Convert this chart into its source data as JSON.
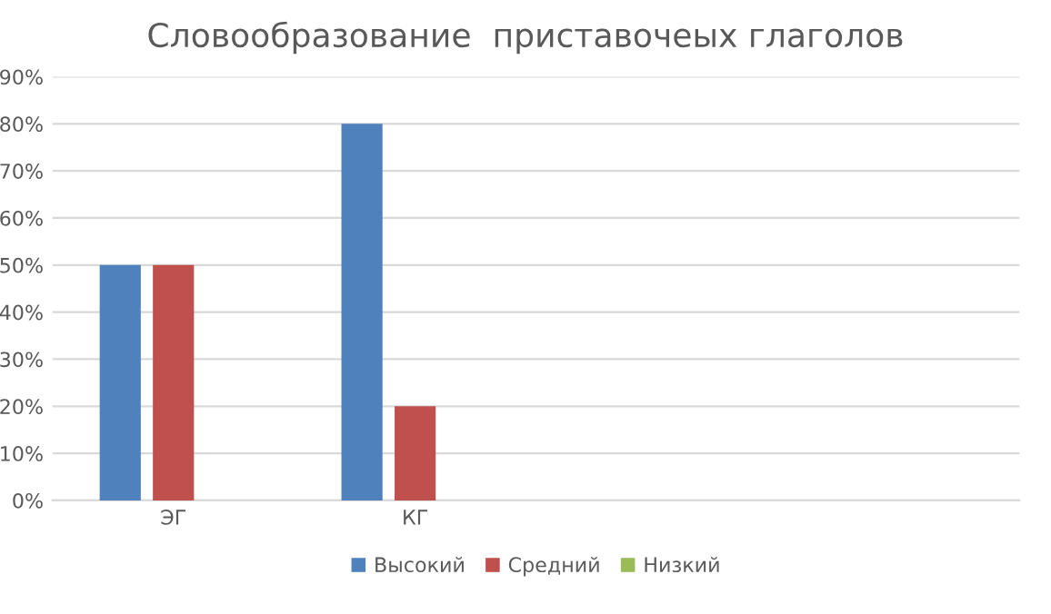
{
  "chart_data": {
    "type": "bar",
    "title": "Словообразование  приставочеых глаголов",
    "categories": [
      "ЭГ",
      "КГ",
      null,
      null
    ],
    "series": [
      {
        "name": "Высокий",
        "color": "#4f81bd",
        "values": [
          50,
          80,
          null,
          null
        ]
      },
      {
        "name": "Средний",
        "color": "#c0504d",
        "values": [
          50,
          20,
          null,
          null
        ]
      },
      {
        "name": "Низкий",
        "color": "#9bbb59",
        "values": [
          0,
          0,
          null,
          null
        ]
      }
    ],
    "ylim": [
      0,
      90
    ],
    "yticks": [
      {
        "value": 0,
        "label": "0%"
      },
      {
        "value": 10,
        "label": "10%"
      },
      {
        "value": 20,
        "label": "20%"
      },
      {
        "value": 30,
        "label": "30%"
      },
      {
        "value": 40,
        "label": "40%"
      },
      {
        "value": 50,
        "label": "50%"
      },
      {
        "value": 60,
        "label": "60%"
      },
      {
        "value": 70,
        "label": "70%"
      },
      {
        "value": 80,
        "label": "80%"
      },
      {
        "value": 90,
        "label": "90%"
      }
    ],
    "grid": "y",
    "legend": "bottom"
  }
}
